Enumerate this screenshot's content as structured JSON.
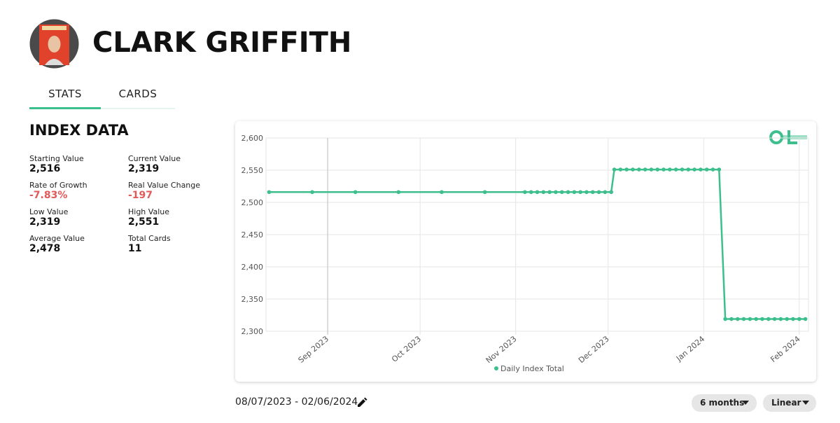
{
  "header": {
    "title": "CLARK GRIFFITH"
  },
  "tabs": [
    "STATS",
    "CARDS"
  ],
  "index_data": {
    "title": "INDEX DATA",
    "stats": [
      {
        "label": "Starting Value",
        "value": "2,516"
      },
      {
        "label": "Current Value",
        "value": "2,319"
      },
      {
        "label": "Rate of Growth",
        "value": "-7.83%"
      },
      {
        "label": "Real Value Change",
        "value": "-197"
      },
      {
        "label": "Low Value",
        "value": "2,319"
      },
      {
        "label": "High Value",
        "value": "2,551"
      },
      {
        "label": "Average Value",
        "value": "2,478"
      },
      {
        "label": "Total Cards",
        "value": "11"
      }
    ]
  },
  "chart_data": {
    "type": "line",
    "x": [
      "2023-08-13",
      "2023-08-27",
      "2023-09-10",
      "2023-09-24",
      "2023-10-08",
      "2023-10-22",
      "2023-11-04",
      "2023-11-06",
      "2023-11-08",
      "2023-11-10",
      "2023-11-12",
      "2023-11-14",
      "2023-11-16",
      "2023-11-18",
      "2023-11-20",
      "2023-11-22",
      "2023-11-24",
      "2023-11-26",
      "2023-11-28",
      "2023-11-30",
      "2023-12-02",
      "2023-12-03",
      "2023-12-05",
      "2023-12-07",
      "2023-12-09",
      "2023-12-11",
      "2023-12-13",
      "2023-12-15",
      "2023-12-17",
      "2023-12-19",
      "2023-12-21",
      "2023-12-23",
      "2023-12-25",
      "2023-12-27",
      "2023-12-29",
      "2023-12-31",
      "2024-01-02",
      "2024-01-04",
      "2024-01-06",
      "2024-01-08",
      "2024-01-10",
      "2024-01-12",
      "2024-01-14",
      "2024-01-16",
      "2024-01-18",
      "2024-01-20",
      "2024-01-22",
      "2024-01-24",
      "2024-01-26",
      "2024-01-28",
      "2024-01-30",
      "2024-02-01",
      "2024-02-03"
    ],
    "series": [
      {
        "name": "Daily Index Total",
        "color": "#3dbf8d",
        "values": [
          2516,
          2516,
          2516,
          2516,
          2516,
          2516,
          2516,
          2516,
          2516,
          2516,
          2516,
          2516,
          2516,
          2516,
          2516,
          2516,
          2516,
          2516,
          2516,
          2516,
          2516,
          2551,
          2551,
          2551,
          2551,
          2551,
          2551,
          2551,
          2551,
          2551,
          2551,
          2551,
          2551,
          2551,
          2551,
          2551,
          2551,
          2551,
          2551,
          2319,
          2319,
          2319,
          2319,
          2319,
          2319,
          2319,
          2319,
          2319,
          2319,
          2319,
          2319,
          2319,
          2319
        ]
      }
    ],
    "xlim": [
      "2023-08-12",
      "2024-02-04"
    ],
    "xticks": [
      {
        "value": "2023-09-01",
        "label": "Sep 2023"
      },
      {
        "value": "2023-10-01",
        "label": "Oct 2023"
      },
      {
        "value": "2023-11-01",
        "label": "Nov 2023"
      },
      {
        "value": "2023-12-01",
        "label": "Dec 2023"
      },
      {
        "value": "2024-01-01",
        "label": "Jan 2024"
      },
      {
        "value": "2024-02-01",
        "label": "Feb 2024"
      }
    ],
    "ylim": [
      2300,
      2600
    ],
    "yticks": [
      {
        "value": 2300,
        "label": "2,300"
      },
      {
        "value": 2350,
        "label": "2,350"
      },
      {
        "value": 2400,
        "label": "2,400"
      },
      {
        "value": 2450,
        "label": "2,450"
      },
      {
        "value": 2500,
        "label": "2,500"
      },
      {
        "value": 2550,
        "label": "2,550"
      },
      {
        "value": 2600,
        "label": "2,600"
      }
    ],
    "grid": true,
    "legend": "bottom"
  },
  "controls": {
    "date_range": "08/07/2023 - 02/06/2024",
    "period": "6 months",
    "scale": "Linear"
  }
}
